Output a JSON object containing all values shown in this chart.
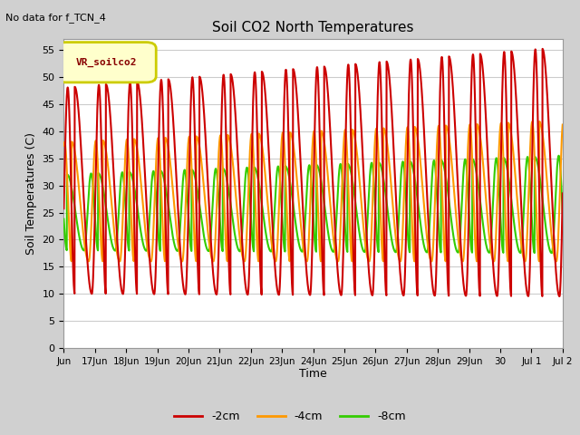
{
  "title": "Soil CO2 North Temperatures",
  "annotation": "No data for f_TCN_4",
  "ylabel": "Soil Temperatures (C)",
  "xlabel": "Time",
  "legend_label": "VR_soilco2",
  "ylim": [
    0,
    57
  ],
  "yticks": [
    0,
    5,
    10,
    15,
    20,
    25,
    30,
    35,
    40,
    45,
    50,
    55
  ],
  "fig_facecolor": "#d0d0d0",
  "plot_facecolor": "#ffffff",
  "series_colors": {
    "-2cm": "#cc0000",
    "-4cm": "#ff9900",
    "-8cm": "#33cc00"
  },
  "tick_labels": [
    "Jun",
    "17Jun",
    "18Jun",
    "19Jun",
    "20Jun",
    "21Jun",
    "22Jun",
    "23Jun",
    "24Jun",
    "25Jun",
    "26Jun",
    "27Jun",
    "28Jun",
    "29Jun",
    "30",
    "Jul 1",
    "Jul 2"
  ],
  "linewidth_2cm": 1.5,
  "linewidth_4cm": 1.5,
  "linewidth_8cm": 1.5
}
